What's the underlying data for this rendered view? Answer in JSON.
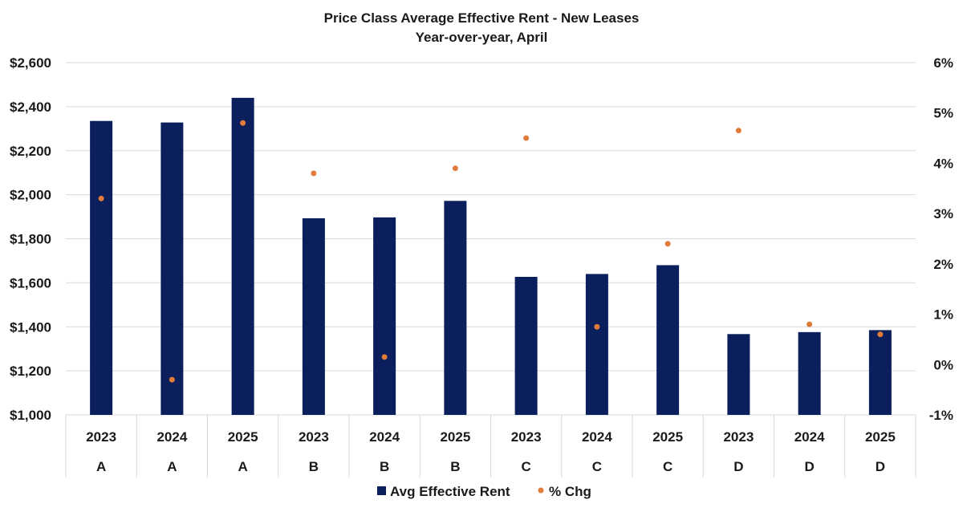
{
  "chart_data": {
    "type": "bar",
    "title": "Price Class Average Effective Rent - New Leases",
    "subtitle": "Year-over-year, April",
    "categories": [
      "2023",
      "2024",
      "2025",
      "2023",
      "2024",
      "2025",
      "2023",
      "2024",
      "2025",
      "2023",
      "2024",
      "2025"
    ],
    "groups": [
      "A",
      "A",
      "A",
      "B",
      "B",
      "B",
      "C",
      "C",
      "C",
      "D",
      "D",
      "D"
    ],
    "series": [
      {
        "name": "Avg Effective Rent",
        "type": "bar",
        "axis": "left",
        "color": "#0a1f5c",
        "values": [
          2335,
          2328,
          2440,
          1893,
          1897,
          1972,
          1627,
          1640,
          1680,
          1367,
          1376,
          1385
        ]
      },
      {
        "name": "% Chg",
        "type": "scatter",
        "axis": "right",
        "color": "#e07b39",
        "values": [
          3.3,
          -0.3,
          4.8,
          3.8,
          0.15,
          3.9,
          4.5,
          0.75,
          2.4,
          4.65,
          0.8,
          0.6
        ]
      }
    ],
    "yleft": {
      "ylim": [
        1000,
        2600
      ],
      "ticks": [
        1000,
        1200,
        1400,
        1600,
        1800,
        2000,
        2200,
        2400,
        2600
      ],
      "tick_labels": [
        "$1,000",
        "$1,200",
        "$1,400",
        "$1,600",
        "$1,800",
        "$2,000",
        "$2,200",
        "$2,400",
        "$2,600"
      ]
    },
    "yright": {
      "ylim": [
        -1,
        6
      ],
      "ticks": [
        -1,
        0,
        1,
        2,
        3,
        4,
        5,
        6
      ],
      "tick_labels": [
        "-1%",
        "0%",
        "1%",
        "2%",
        "3%",
        "4%",
        "5%",
        "6%"
      ]
    },
    "grid": true,
    "legend": "bottom-center"
  }
}
